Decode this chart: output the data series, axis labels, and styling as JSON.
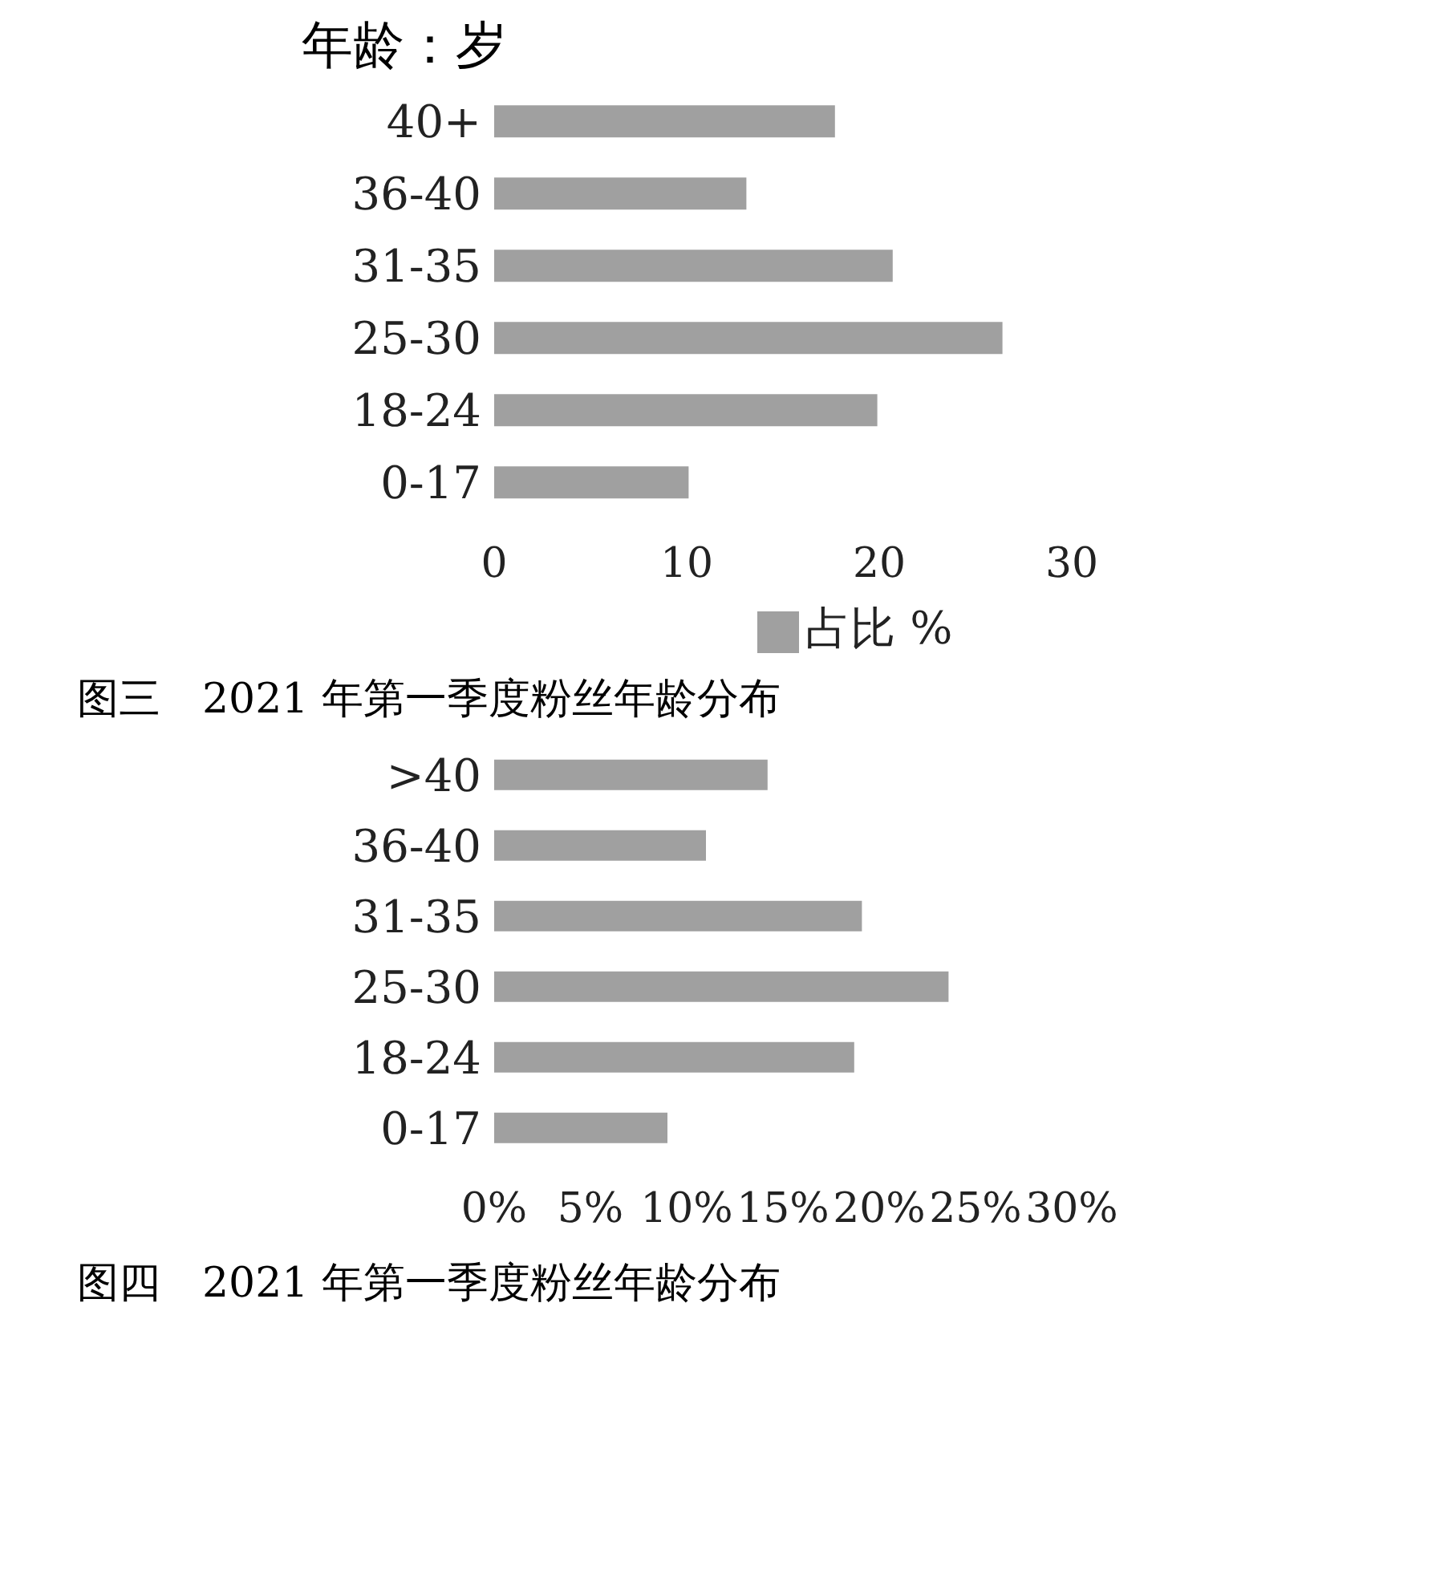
{
  "chart_data": [
    {
      "type": "bar",
      "orientation": "horizontal",
      "ylabel": "年龄：岁",
      "title": "图三　2021 年第一季度粉丝年龄分布",
      "categories": [
        "40+",
        "36-40",
        "31-35",
        "25-30",
        "18-24",
        "0-17"
      ],
      "series": [
        {
          "name": "占比 %",
          "color": "#a0a0a0",
          "values": [
            17.7,
            13.1,
            20.7,
            26.4,
            19.9,
            10.1
          ]
        }
      ],
      "xlim": [
        0,
        30
      ],
      "xticks": [
        0,
        10,
        20,
        30
      ],
      "grid": false,
      "legend": "bottom"
    },
    {
      "type": "bar",
      "orientation": "horizontal",
      "title": "图四　2021 年第一季度粉丝年龄分布",
      "categories": [
        ">40",
        "36-40",
        "31-35",
        "25-30",
        "18-24",
        "0-17"
      ],
      "values": [
        14.2,
        11.0,
        19.1,
        23.6,
        18.7,
        9.0
      ],
      "color": "#a0a0a0",
      "xlim": [
        0,
        30
      ],
      "xticks": [
        {
          "value": 0,
          "label": "0%"
        },
        {
          "value": 5,
          "label": "5%"
        },
        {
          "value": 10,
          "label": "10%"
        },
        {
          "value": 15,
          "label": "15%"
        },
        {
          "value": 20,
          "label": "20%"
        },
        {
          "value": 25,
          "label": "25%"
        },
        {
          "value": 30,
          "label": "30%"
        }
      ],
      "grid": false
    }
  ]
}
